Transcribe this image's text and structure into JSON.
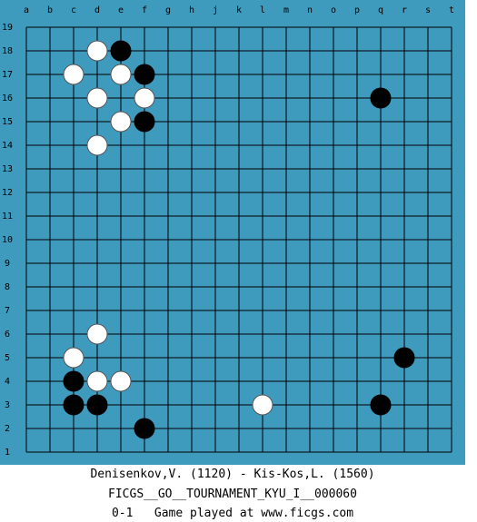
{
  "board": {
    "columns": [
      "a",
      "b",
      "c",
      "d",
      "e",
      "f",
      "g",
      "h",
      "j",
      "k",
      "l",
      "m",
      "n",
      "o",
      "p",
      "q",
      "r",
      "s",
      "t"
    ],
    "rows": [
      19,
      18,
      17,
      16,
      15,
      14,
      13,
      12,
      11,
      10,
      9,
      8,
      7,
      6,
      5,
      4,
      3,
      2,
      1
    ],
    "stones": [
      {
        "color": "white",
        "col": 3,
        "row": 18
      },
      {
        "color": "black",
        "col": 4,
        "row": 18
      },
      {
        "color": "white",
        "col": 2,
        "row": 17
      },
      {
        "color": "white",
        "col": 4,
        "row": 17
      },
      {
        "color": "black",
        "col": 5,
        "row": 17
      },
      {
        "color": "white",
        "col": 3,
        "row": 16
      },
      {
        "color": "white",
        "col": 5,
        "row": 16
      },
      {
        "color": "black",
        "col": 15,
        "row": 16
      },
      {
        "color": "white",
        "col": 4,
        "row": 15
      },
      {
        "color": "black",
        "col": 5,
        "row": 15
      },
      {
        "color": "white",
        "col": 3,
        "row": 14
      },
      {
        "color": "white",
        "col": 3,
        "row": 6
      },
      {
        "color": "white",
        "col": 2,
        "row": 5
      },
      {
        "color": "black",
        "col": 16,
        "row": 5
      },
      {
        "color": "black",
        "col": 2,
        "row": 4
      },
      {
        "color": "white",
        "col": 3,
        "row": 4
      },
      {
        "color": "white",
        "col": 4,
        "row": 4
      },
      {
        "color": "black",
        "col": 2,
        "row": 3
      },
      {
        "color": "black",
        "col": 3,
        "row": 3
      },
      {
        "color": "white",
        "col": 10,
        "row": 3
      },
      {
        "color": "black",
        "col": 15,
        "row": 3
      },
      {
        "color": "black",
        "col": 5,
        "row": 2
      }
    ]
  },
  "footer": {
    "players": "Denisenkov,V. (1120) - Kis-Kos,L. (1560)",
    "event": "FICGS__GO__TOURNAMENT_KYU_I__000060",
    "result": "0-1   Game played at www.ficgs.com"
  }
}
